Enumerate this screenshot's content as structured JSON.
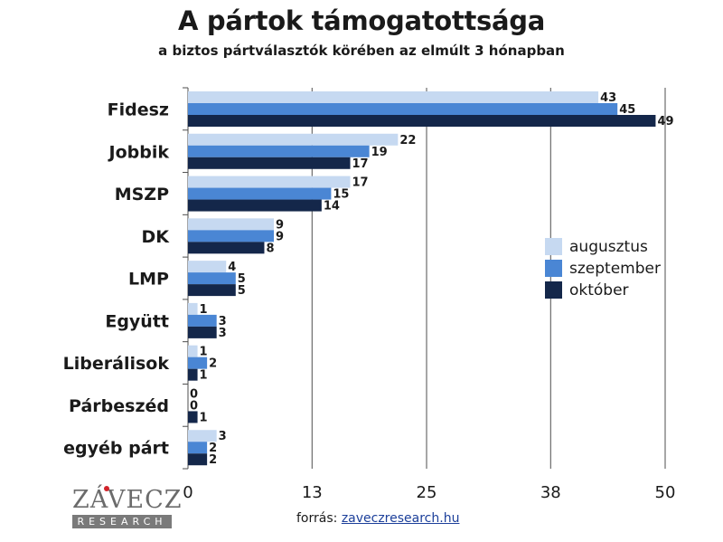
{
  "title": "A pártok támogatottsága",
  "subtitle": "a biztos pártválasztók körében az elmúlt 3 hónapban",
  "source": {
    "label": "forrás:",
    "link": "zaveczresearch.hu"
  },
  "logo": {
    "word": "ZÁVECZ",
    "band": "RESEARCH"
  },
  "colors": {
    "augusztus": "#c6d9f1",
    "szeptember": "#4a86d4",
    "október": "#14274a",
    "grid": "#4d4d4d",
    "dot": "#d2232a"
  },
  "chart_data": {
    "type": "bar",
    "orientation": "horizontal",
    "categories": [
      "Fidesz",
      "Jobbik",
      "MSZP",
      "DK",
      "LMP",
      "Együtt",
      "Liberálisok",
      "Párbeszéd",
      "egyéb párt"
    ],
    "series": [
      {
        "name": "augusztus",
        "values": [
          43,
          22,
          17,
          9,
          4,
          1,
          1,
          0,
          3
        ]
      },
      {
        "name": "szeptember",
        "values": [
          45,
          19,
          15,
          9,
          5,
          3,
          2,
          0,
          2
        ]
      },
      {
        "name": "október",
        "values": [
          49,
          17,
          14,
          8,
          5,
          3,
          1,
          1,
          2
        ]
      }
    ],
    "xlim": [
      0,
      50
    ],
    "xticks": [
      0,
      13,
      25,
      38,
      50
    ],
    "grid": true,
    "legend": "right"
  }
}
